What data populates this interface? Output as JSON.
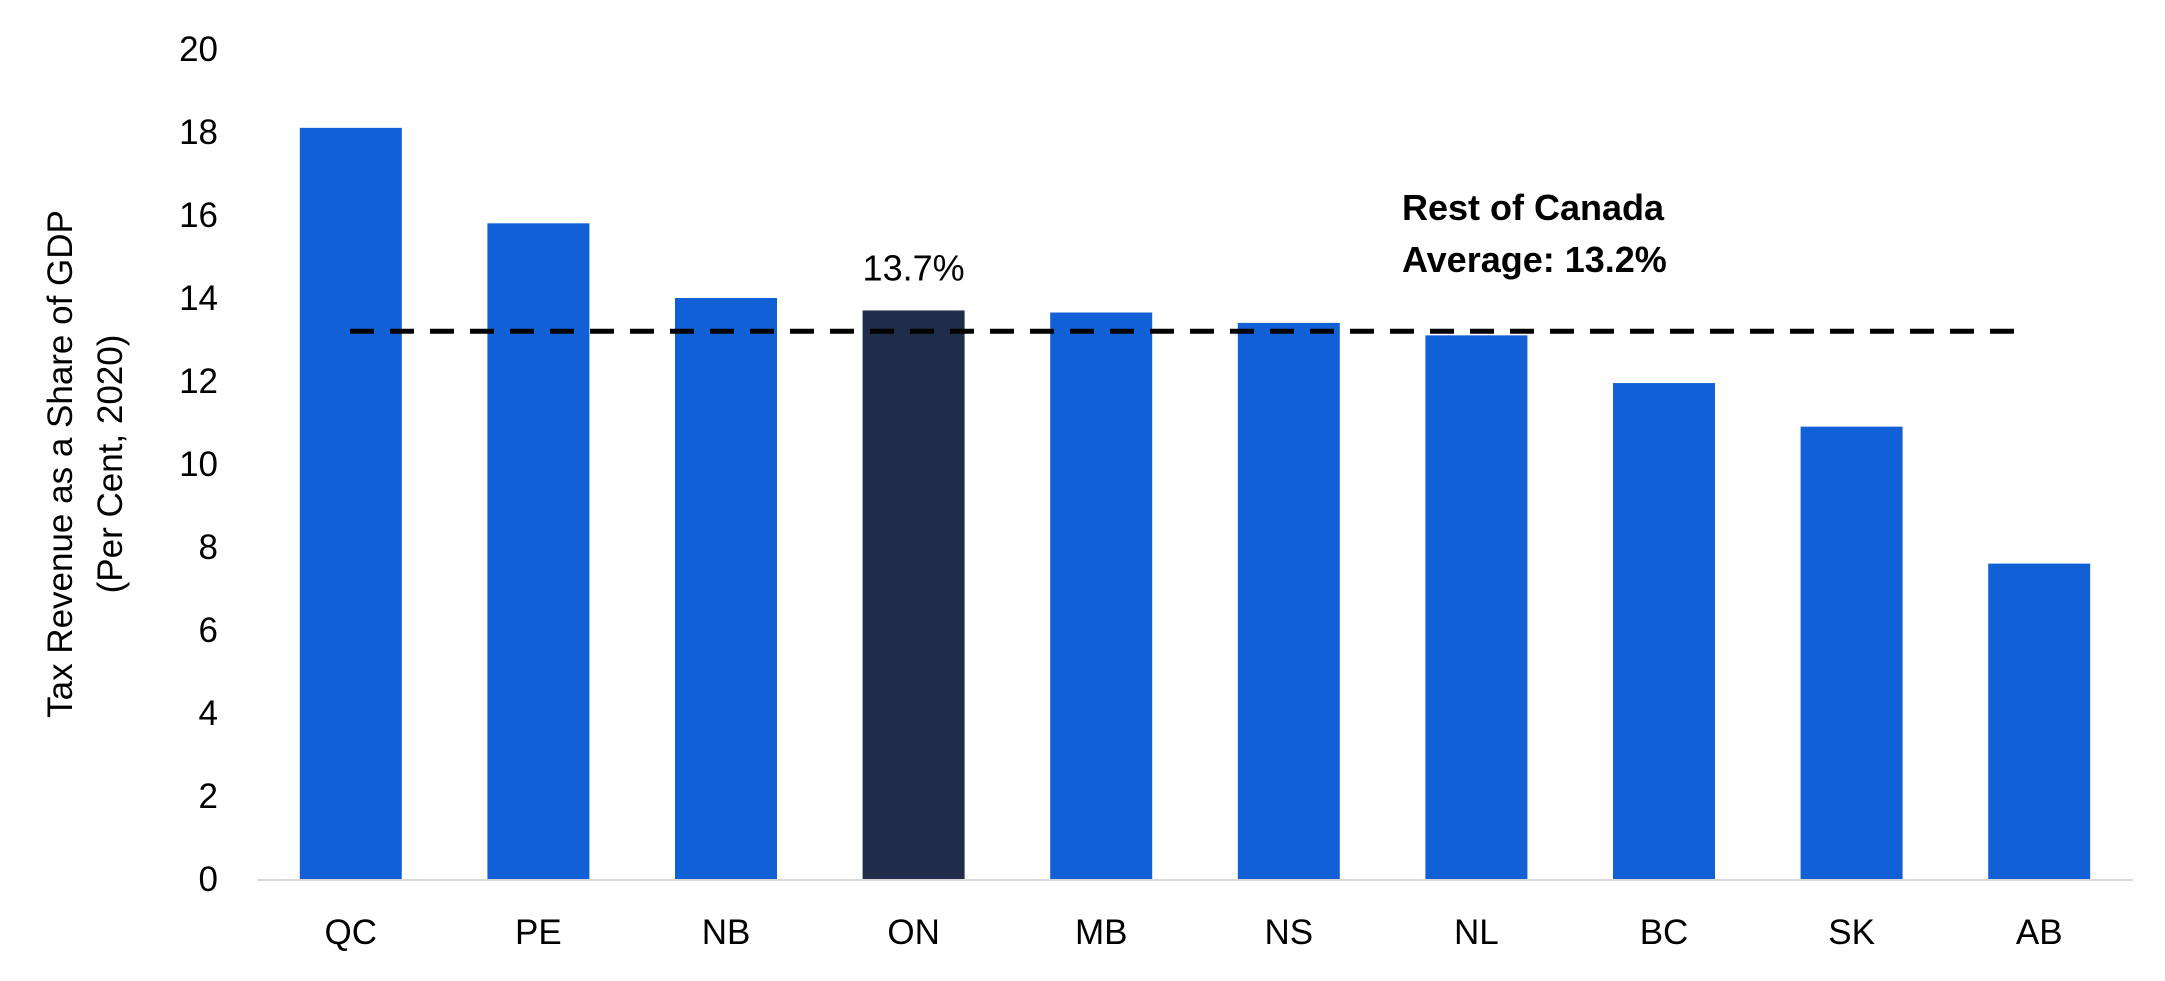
{
  "chart_data": {
    "type": "bar",
    "categories": [
      "QC",
      "PE",
      "NB",
      "ON",
      "MB",
      "NS",
      "NL",
      "BC",
      "SK",
      "AB"
    ],
    "values": [
      18.1,
      15.8,
      14.0,
      13.7,
      13.65,
      13.4,
      13.1,
      11.95,
      10.9,
      7.6
    ],
    "highlight_category": "ON",
    "colors": {
      "default": "#1160d6",
      "highlight": "#1f2d4a",
      "reference_line": "#000000",
      "axis_line": "#d9d9d9"
    },
    "ylabel_lines": [
      "Tax Revenue as a Share of GDP",
      "(Per Cent, 2020)"
    ],
    "xlabel": "",
    "ylim": [
      0,
      20
    ],
    "y_ticks": [
      "0",
      "2",
      "4",
      "6",
      "8",
      "10",
      "12",
      "14",
      "16",
      "18",
      "20"
    ],
    "data_labels": [
      {
        "category": "ON",
        "text": "13.7%"
      }
    ],
    "reference_line": {
      "value": 13.2,
      "style": "dashed",
      "label_lines": [
        "Rest of Canada",
        "Average: 13.2%"
      ]
    },
    "grid": false,
    "legend": "none"
  }
}
